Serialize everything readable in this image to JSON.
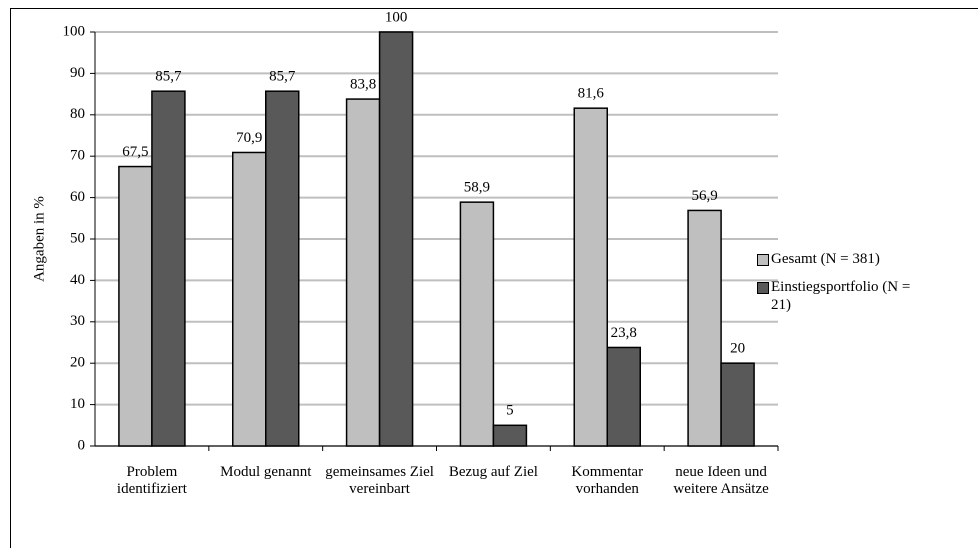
{
  "chart_data": {
    "type": "bar",
    "y_label": "Angaben in %",
    "categories": [
      "Problem identifiziert",
      "Modul genannt",
      "gemeinsames Ziel vereinbart",
      "Bezug auf Ziel",
      "Kommentar vorhanden",
      "neue Ideen und weitere Ansätze"
    ],
    "series": [
      {
        "name": "Gesamt (N = 381)",
        "color": "#bfbfbf",
        "values": [
          67.5,
          70.9,
          83.8,
          58.9,
          81.6,
          56.9
        ],
        "value_labels": [
          "67,5",
          "70,9",
          "83,8",
          "58,9",
          "81,6",
          "56,9"
        ]
      },
      {
        "name": "Einstiegsportfolio (N = 21)",
        "color": "#595959",
        "values": [
          85.7,
          85.7,
          100,
          5,
          23.8,
          20
        ],
        "value_labels": [
          "85,7",
          "85,7",
          "100",
          "5",
          "23,8",
          "20"
        ]
      }
    ],
    "ylim": [
      0,
      100
    ],
    "yticks": [
      0,
      10,
      20,
      30,
      40,
      50,
      60,
      70,
      80,
      90,
      100
    ],
    "grid": true,
    "legend": "right"
  }
}
